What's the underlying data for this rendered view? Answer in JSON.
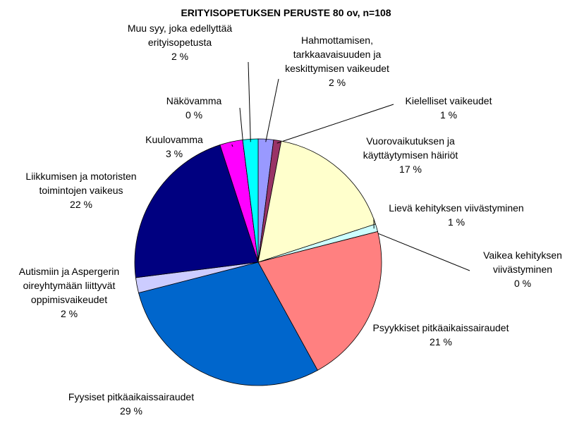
{
  "chart_data": {
    "type": "pie",
    "title": "ERITYISOPETUKSEN PERUSTE 80 ov, n=108",
    "categories": [
      "Hahmottamisen, tarkkaavaisuuden ja keskittymisen vaikeudet",
      "Kielelliset vaikeudet",
      "Vuorovaikutuksen ja käyttäytymisen häiriöt",
      "Lievä kehityksen viivästyminen",
      "Vaikea kehityksen viivästyminen",
      "Psyykkiset pitkäaikaissairaudet",
      "Fyysiset pitkäaikaissairaudet",
      "Autismiin ja Aspergerin oireyhtymään liittyvät oppimisvaikeudet",
      "Liikkumisen ja motoristen toimintojen vaikeus",
      "Kuulovamma",
      "Näkövamma",
      "Muu syy, joka edellyttää erityisopetusta"
    ],
    "values": [
      2,
      1,
      17,
      1,
      0,
      21,
      29,
      2,
      22,
      3,
      0,
      2
    ],
    "value_labels": [
      "2 %",
      "1 %",
      "17 %",
      "1 %",
      "0 %",
      "21 %",
      "29 %",
      "2 %",
      "22 %",
      "3 %",
      "0 %",
      "2 %"
    ],
    "colors": [
      "#9999ff",
      "#993366",
      "#ffffcc",
      "#ccffff",
      "#660066",
      "#ff8080",
      "#0066cc",
      "#ccccff",
      "#000080",
      "#ff00ff",
      "#ffff00",
      "#00ffff"
    ]
  }
}
